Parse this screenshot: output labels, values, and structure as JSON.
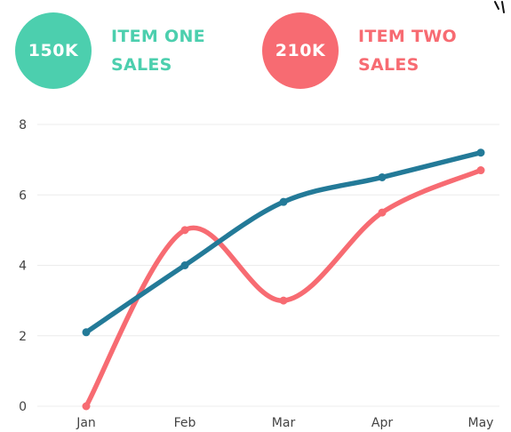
{
  "kpis": [
    {
      "value": "150K",
      "label_line1": "ITEM ONE",
      "label_line2": "SALES",
      "color": "#4ccfae"
    },
    {
      "value": "210K",
      "label_line1": "ITEM TWO",
      "label_line2": "SALES",
      "color": "#f76b72"
    }
  ],
  "chart_data": {
    "type": "line",
    "title": "",
    "xlabel": "",
    "ylabel": "",
    "categories": [
      "Jan",
      "Feb",
      "Mar",
      "Apr",
      "May"
    ],
    "ylim": [
      0,
      8
    ],
    "yticks": [
      0,
      2,
      4,
      6,
      8
    ],
    "grid": true,
    "smooth": true,
    "series": [
      {
        "values": [
          2.1,
          4,
          5.8,
          6.5,
          7.2
        ],
        "color": "#237a98"
      },
      {
        "values": [
          0,
          5,
          3,
          5.5,
          6.7
        ],
        "color": "#f76b72"
      }
    ]
  }
}
